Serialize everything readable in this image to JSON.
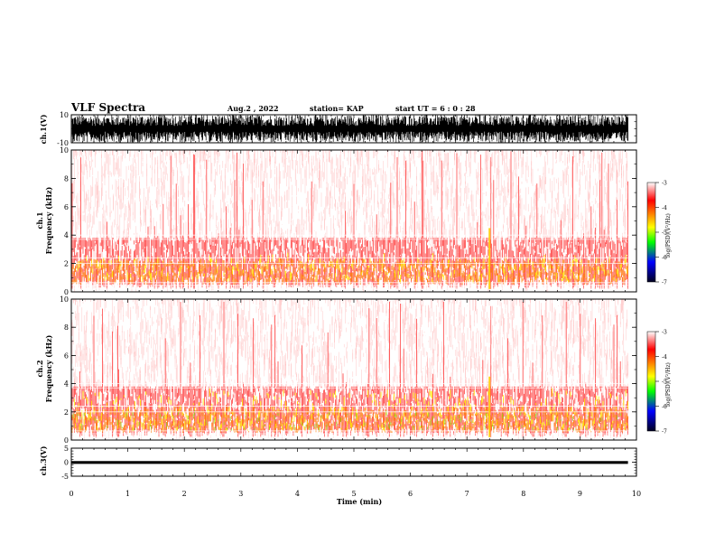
{
  "header": {
    "title": "VLF Spectra",
    "date": "Aug.2 , 2022",
    "station": "station= KAP",
    "start": "start UT = 6 : 0 : 28"
  },
  "colors": {
    "spectrogram_palette": [
      "#ffffff",
      "#ff0000",
      "#ffff00",
      "#00ff00",
      "#0000ff",
      "#000000"
    ],
    "waveform": "#000000"
  },
  "chart_data": [
    {
      "type": "line",
      "panel": "ch1-waveform",
      "ylabel": "ch.1(V)",
      "ylim": [
        -10,
        10
      ],
      "yticks": [
        "10",
        "-10"
      ],
      "xlim": [
        0,
        10
      ],
      "note_series": "dense noisy black waveform filling most of the range up to ~9.85 min"
    },
    {
      "type": "heatmap",
      "panel": "ch1-spectrogram",
      "ylabel": "ch.1 Frequency (kHz)",
      "ylim": [
        0,
        10
      ],
      "yticks": [
        "0",
        "2",
        "4",
        "6",
        "8",
        "10"
      ],
      "xlim": [
        0,
        10
      ],
      "data_end_min": 9.85,
      "colorbar": {
        "label": "log(PSD)(V²/Hz)",
        "ticks": [
          "-3",
          "-4",
          "-5",
          "-6",
          "-7"
        ],
        "range": [
          -7,
          -3
        ]
      },
      "bands": [
        {
          "freq_khz": [
            0.3,
            1.2
          ],
          "level": "yellow/red"
        },
        {
          "freq_khz": [
            1.2,
            2.0
          ],
          "level": "yellow/orange"
        },
        {
          "freq_khz": [
            2.0,
            3.5
          ],
          "level": "red"
        },
        {
          "freq_khz": [
            3.5,
            10
          ],
          "level": "sparse red speckle"
        }
      ],
      "bright_vertical_event_min": 7.4
    },
    {
      "type": "heatmap",
      "panel": "ch2-spectrogram",
      "ylabel": "ch.2 Frequency (kHz)",
      "ylim": [
        0,
        10
      ],
      "yticks": [
        "0",
        "2",
        "4",
        "6",
        "8",
        "10"
      ],
      "xlim": [
        0,
        10
      ],
      "data_end_min": 9.85,
      "colorbar": {
        "label": "log(PSD)(V²/Hz)",
        "ticks": [
          "-3",
          "-4",
          "-5",
          "-6",
          "-7"
        ],
        "range": [
          -7,
          -3
        ]
      },
      "bands": [
        {
          "freq_khz": [
            0.3,
            1.0
          ],
          "level": "yellow/green"
        },
        {
          "freq_khz": [
            1.0,
            2.0
          ],
          "level": "yellow/red"
        },
        {
          "freq_khz": [
            2.0,
            3.5
          ],
          "level": "red with yellow"
        },
        {
          "freq_khz": [
            3.5,
            10
          ],
          "level": "sparse red speckle"
        }
      ],
      "bright_vertical_event_min": 7.4
    },
    {
      "type": "line",
      "panel": "ch3-waveform",
      "ylabel": "ch.3(V)",
      "ylim": [
        -5,
        5
      ],
      "yticks": [
        "5",
        "0",
        "-5"
      ],
      "xlim": [
        0,
        10
      ],
      "xlabel": "Time (min)",
      "xticks": [
        "0",
        "1",
        "2",
        "3",
        "4",
        "5",
        "6",
        "7",
        "8",
        "9",
        "10"
      ],
      "band_v": [
        -0.6,
        0.4
      ]
    }
  ]
}
